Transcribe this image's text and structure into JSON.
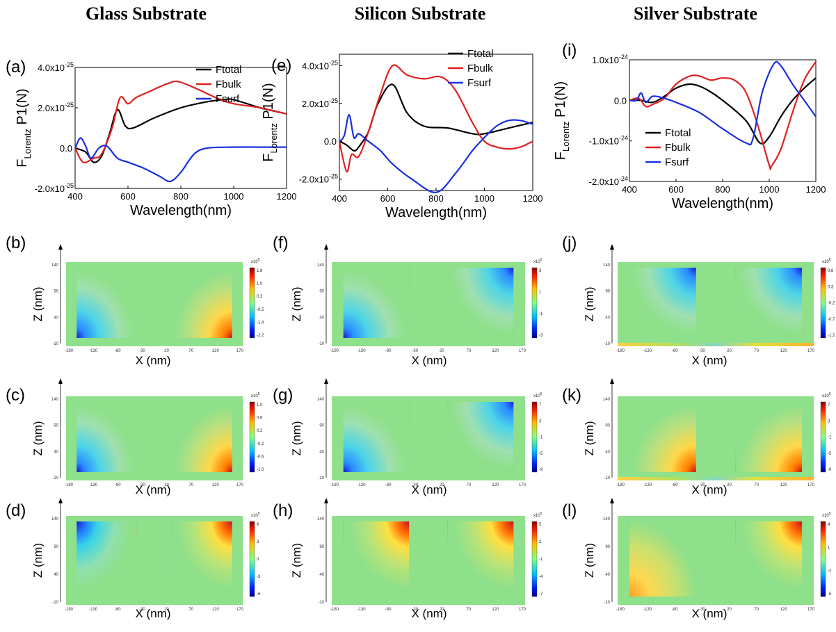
{
  "columns": [
    {
      "title": "Glass Substrate"
    },
    {
      "title": "Silicon Substrate"
    },
    {
      "title": "Silver Substrate"
    }
  ],
  "chart_data": [
    {
      "type": "line",
      "label": "(a)",
      "xlabel": "Wavelength(nm)",
      "ylabel_main": "F",
      "ylabel_sub": "Lorentz",
      "ylabel_tail": " P1(N)",
      "xlim": [
        400,
        1200
      ],
      "ylim": [
        -2e-25,
        4e-25
      ],
      "x_ticks": [
        "400",
        "600",
        "800",
        "1000",
        "1200"
      ],
      "y_ticks": [
        {
          "value": -2e-25,
          "base": "-2.0x10",
          "exp": "-25"
        },
        {
          "value": 0,
          "base": "0.0",
          "exp": ""
        },
        {
          "value": 2e-25,
          "base": "2.0x10",
          "exp": "-25"
        },
        {
          "value": 4e-25,
          "base": "4.0x10",
          "exp": "-25"
        }
      ],
      "legend_position": "top-right",
      "series": [
        {
          "name": "Ftotal",
          "color": "#000000",
          "x": [
            400,
            440,
            470,
            500,
            530,
            560,
            590,
            620,
            700,
            800,
            900,
            960,
            1000,
            1100,
            1200
          ],
          "y": [
            0.0,
            -2e-26,
            -7e-26,
            -4e-26,
            7e-26,
            1.9e-25,
            1.1e-25,
            1e-25,
            1.5e-25,
            2e-25,
            2.3e-25,
            2.4e-25,
            2.4e-25,
            2e-25,
            1.7e-25
          ]
        },
        {
          "name": "Fbulk",
          "color": "#e02020",
          "x": [
            400,
            430,
            470,
            500,
            540,
            570,
            600,
            630,
            680,
            750,
            790,
            850,
            900,
            950,
            1000,
            1100,
            1200
          ],
          "y": [
            0.0,
            -7e-26,
            -5e-26,
            -3e-26,
            1e-25,
            2.5e-25,
            2.2e-25,
            2.5e-25,
            2.8e-25,
            3.2e-25,
            3.3e-25,
            3e-25,
            2.7e-25,
            2.4e-25,
            2.2e-25,
            2e-25,
            1.7e-25
          ]
        },
        {
          "name": "Fsurf",
          "color": "#1a2fe0",
          "x": [
            400,
            420,
            440,
            460,
            490,
            520,
            560,
            600,
            660,
            720,
            760,
            800,
            850,
            900,
            1000,
            1100,
            1200
          ],
          "y": [
            0.0,
            5e-26,
            1e-26,
            -5e-26,
            0.0,
            1e-26,
            -5e-26,
            -7e-26,
            -1e-25,
            -1.4e-25,
            -1.65e-25,
            -1.2e-25,
            -3e-26,
            0.0,
            5e-27,
            5e-27,
            5e-27
          ]
        }
      ]
    },
    {
      "type": "line",
      "label": "(e)",
      "xlabel": "Wavelength(nm)",
      "ylabel_main": "F",
      "ylabel_sub": "Lorentz",
      "ylabel_tail": " P1(N)",
      "xlim": [
        400,
        1200
      ],
      "ylim": [
        -2.6e-25,
        4.6e-25
      ],
      "x_ticks": [
        "400",
        "600",
        "800",
        "1000",
        "1200"
      ],
      "y_ticks": [
        {
          "value": -2e-25,
          "base": "-2.0x10",
          "exp": "-25"
        },
        {
          "value": 0,
          "base": "0.0",
          "exp": ""
        },
        {
          "value": 2e-25,
          "base": "2.0x10",
          "exp": "-25"
        },
        {
          "value": 4e-25,
          "base": "4.0x10",
          "exp": "-25"
        }
      ],
      "legend_position": "top-right",
      "series": [
        {
          "name": "Ftotal",
          "color": "#000000",
          "x": [
            400,
            430,
            460,
            480,
            520,
            560,
            620,
            680,
            750,
            850,
            950,
            1000,
            1100,
            1200
          ],
          "y": [
            0.0,
            -2e-26,
            -5e-26,
            -3e-26,
            5e-26,
            2e-25,
            3e-25,
            1.5e-25,
            8e-26,
            7e-26,
            4e-26,
            4e-26,
            7e-26,
            1e-25
          ]
        },
        {
          "name": "Fbulk",
          "color": "#e02020",
          "x": [
            400,
            430,
            450,
            480,
            520,
            570,
            620,
            680,
            750,
            820,
            880,
            950,
            1000,
            1050,
            1100,
            1150,
            1200
          ],
          "y": [
            0.0,
            -1.6e-25,
            -7e-26,
            -8e-26,
            5e-26,
            2.5e-25,
            4e-25,
            3.5e-25,
            3.3e-25,
            3.4e-25,
            2.7e-25,
            1e-25,
            0.0,
            -3e-26,
            -4e-26,
            -3e-26,
            0.0
          ]
        },
        {
          "name": "Fsurf",
          "color": "#1a2fe0",
          "x": [
            400,
            420,
            440,
            460,
            480,
            520,
            570,
            620,
            700,
            800,
            880,
            950,
            1000,
            1050,
            1100,
            1150,
            1200
          ],
          "y": [
            0.0,
            3e-26,
            1.4e-25,
            2e-26,
            4e-26,
            0.0,
            -5e-26,
            -1.2e-25,
            -2e-25,
            -2.7e-25,
            -1.7e-25,
            -5e-26,
            2e-26,
            8e-26,
            1.1e-25,
            1.1e-25,
            9e-26
          ]
        }
      ]
    },
    {
      "type": "line",
      "label": "(i)",
      "xlabel": "Wavelength(nm)",
      "ylabel_main": "F",
      "ylabel_sub": "Lorentz",
      "ylabel_tail": " P1(N)",
      "xlim": [
        400,
        1200
      ],
      "ylim": [
        -2e-24,
        1e-24
      ],
      "x_ticks": [
        "400",
        "600",
        "800",
        "1000",
        "1200"
      ],
      "y_ticks": [
        {
          "value": -2e-24,
          "base": "-2.0x10",
          "exp": "-24"
        },
        {
          "value": -1e-24,
          "base": "-1.0x10",
          "exp": "-24"
        },
        {
          "value": 0,
          "base": "0.0",
          "exp": ""
        },
        {
          "value": 1e-24,
          "base": "1.0x10",
          "exp": "-24"
        }
      ],
      "legend_position": "center-left",
      "series": [
        {
          "name": "Ftotal",
          "color": "#000000",
          "x": [
            400,
            450,
            500,
            550,
            600,
            660,
            720,
            800,
            900,
            960,
            1000,
            1050,
            1100,
            1150,
            1200
          ],
          "y": [
            0.0,
            0.0,
            -5e-26,
            1e-25,
            3e-25,
            4e-25,
            3e-25,
            0.0,
            -5e-25,
            -1.05e-24,
            -9e-25,
            -4e-25,
            0.0,
            3e-25,
            5.5e-25
          ]
        },
        {
          "name": "Fbulk",
          "color": "#e02020",
          "x": [
            400,
            440,
            470,
            500,
            550,
            600,
            660,
            700,
            750,
            800,
            850,
            900,
            950,
            1000,
            1010,
            1050,
            1100,
            1150,
            1200
          ],
          "y": [
            0.0,
            5e-26,
            -1.5e-25,
            -1e-25,
            5e-26,
            4e-25,
            6e-25,
            6e-25,
            5e-25,
            5.5e-25,
            5e-25,
            2e-25,
            -6e-25,
            -1.6e-24,
            -1.62e-24,
            -1.2e-24,
            -3e-25,
            5e-25,
            9.5e-25
          ]
        },
        {
          "name": "Fsurf",
          "color": "#1a2fe0",
          "x": [
            400,
            430,
            450,
            470,
            500,
            550,
            600,
            700,
            800,
            900,
            930,
            970,
            1020,
            1050,
            1100,
            1150,
            1200
          ],
          "y": [
            0.0,
            0.0,
            1.8e-25,
            -5e-26,
            1e-25,
            5e-26,
            -5e-26,
            -3e-25,
            -7e-25,
            -1.05e-24,
            -9.5e-25,
            2e-25,
            9e-25,
            8.5e-25,
            4e-25,
            0.0,
            -4e-25
          ]
        }
      ]
    }
  ],
  "maps": [
    {
      "label": "(b)",
      "cb_ticks": [
        "1.8",
        "1.0",
        "0.2",
        "-0.5",
        "-1.4",
        "-2.2"
      ],
      "cb_exp": "x10",
      "cb_exp_sup": "5",
      "pattern": "corner-br",
      "axis_strip": false
    },
    {
      "label": "(c)",
      "cb_ticks": [
        "1.0",
        "0.6",
        "0.2",
        "-0.2",
        "-0.6",
        "-1.0"
      ],
      "cb_exp": "x10",
      "cb_exp_sup": "5",
      "pattern": "corner-br",
      "axis_strip": false
    },
    {
      "label": "(d)",
      "cb_ticks": [
        "6",
        "3",
        "0",
        "-3",
        "-6"
      ],
      "cb_exp": "x10",
      "cb_exp_sup": "5",
      "pattern": "corner-tr",
      "axis_strip": false
    },
    {
      "label": "(f)",
      "cb_ticks": [
        "3",
        "1",
        "-1",
        "-3"
      ],
      "cb_exp": "x10",
      "cb_exp_sup": "5",
      "pattern": "full-left",
      "axis_strip": false
    },
    {
      "label": "(g)",
      "cb_ticks": [
        "7",
        "3",
        "-1",
        "-5",
        "-9"
      ],
      "cb_exp": "x10",
      "cb_exp_sup": "5",
      "pattern": "full-left",
      "axis_strip": false
    },
    {
      "label": "(h)",
      "cb_ticks": [
        "5",
        "2",
        "-1",
        "-4",
        "-7"
      ],
      "cb_exp": "x10",
      "cb_exp_sup": "5",
      "pattern": "top-blue",
      "axis_strip": false
    },
    {
      "label": "(j)",
      "cb_ticks": [
        "0.8",
        "0.3",
        "-0.2",
        "-0.7",
        "-1.2"
      ],
      "cb_exp": "x10",
      "cb_exp_sup": "6",
      "pattern": "silver-j",
      "axis_strip": true
    },
    {
      "label": "(k)",
      "cb_ticks": [
        "7",
        "3",
        "-1",
        "-5",
        "-9"
      ],
      "cb_exp": "x10",
      "cb_exp_sup": "5",
      "pattern": "silver-k",
      "axis_strip": true
    },
    {
      "label": "(l)",
      "cb_ticks": [
        "4",
        "1",
        "-2",
        "-5"
      ],
      "cb_exp": "x10",
      "cb_exp_sup": "5",
      "pattern": "silver-l",
      "axis_strip": false
    }
  ],
  "map_axes": {
    "xlabel": "X (nm)",
    "ylabel": "Z (nm)",
    "x_ticks": [
      "-180",
      "-130",
      "-80",
      "-30",
      "20",
      "70",
      "120",
      "170"
    ],
    "z_ticks": [
      "140",
      "90",
      "40",
      "-10"
    ]
  },
  "colors": {
    "background": "#ffffff",
    "map_base": "#8fe08a",
    "colormap": "jet"
  }
}
